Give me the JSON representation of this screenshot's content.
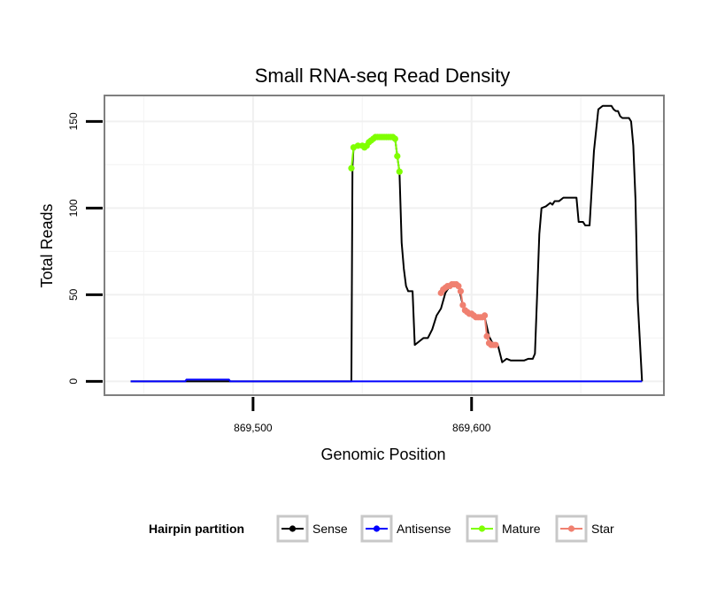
{
  "chart_data": {
    "type": "line",
    "title": "Small RNA-seq Read Density",
    "xlabel": "Genomic Position",
    "ylabel": "Total Reads",
    "xlim": [
      869432,
      869688
    ],
    "ylim": [
      -8,
      165
    ],
    "x_ticks": [
      {
        "value": 869500,
        "label": "869,500"
      },
      {
        "value": 869600,
        "label": "869,600"
      }
    ],
    "y_ticks": [
      {
        "value": 0,
        "label": "0"
      },
      {
        "value": 50,
        "label": "50"
      },
      {
        "value": 100,
        "label": "100"
      },
      {
        "value": 150,
        "label": "150"
      }
    ],
    "grid": true,
    "legend": {
      "title": "Hairpin partition",
      "position": "bottom",
      "entries": [
        {
          "name": "Sense",
          "color": "#000000"
        },
        {
          "name": "Antisense",
          "color": "#0000ff"
        },
        {
          "name": "Mature",
          "color": "#7fff00"
        },
        {
          "name": "Star",
          "color": "#f08070"
        }
      ]
    },
    "series": [
      {
        "name": "Sense",
        "color": "#000000",
        "markers": false,
        "x": [
          869444,
          869545,
          869545.5,
          869546,
          869548,
          869550,
          869551,
          869552,
          869553,
          869554,
          869555,
          869556,
          869557,
          869558,
          869559,
          869560,
          869561,
          869562,
          869563,
          869564,
          869565,
          869566,
          869567,
          869568,
          869569,
          869570,
          869571,
          869573,
          869574,
          869576,
          869578,
          869580,
          869582,
          869584,
          869586,
          869588,
          869590,
          869592,
          869594,
          869596,
          869598,
          869600,
          869602,
          869604,
          869606,
          869608,
          869610,
          869612,
          869614,
          869616,
          869618,
          869620,
          869622,
          869624,
          869626,
          869628,
          869629,
          869630,
          869631,
          869632,
          869634,
          869636,
          869637,
          869638,
          869640,
          869642,
          869644,
          869646,
          869647,
          869648,
          869649,
          869650,
          869651,
          869652,
          869654,
          869656,
          869658,
          869660,
          869662,
          869664,
          869665,
          869666,
          869667,
          869668,
          869669,
          869670,
          869671,
          869672,
          869673,
          869674,
          869675,
          869676,
          869678
        ],
        "y": [
          0,
          0,
          124,
          135,
          136,
          136,
          135,
          136,
          138,
          139,
          140,
          141,
          141,
          141,
          141,
          141,
          141,
          141,
          141,
          141,
          140,
          130,
          121,
          80,
          65,
          55,
          52,
          52,
          21,
          23,
          25,
          25,
          30,
          38,
          42,
          51,
          55,
          56,
          55,
          44,
          39,
          38,
          37,
          37,
          37,
          26,
          21,
          21,
          11,
          13,
          12,
          12,
          12,
          12,
          13,
          13,
          16,
          50,
          85,
          100,
          101,
          103,
          102,
          104,
          104,
          106,
          106,
          106,
          106,
          106,
          92,
          92,
          92,
          90,
          90,
          133,
          157,
          159,
          159,
          159,
          157,
          156,
          156,
          153,
          152,
          152,
          152,
          152,
          150,
          136,
          105,
          47,
          0
        ]
      },
      {
        "name": "Antisense",
        "color": "#0000ff",
        "markers": false,
        "x": [
          869444,
          869469,
          869469.5,
          869489,
          869489.5,
          869678
        ],
        "y": [
          0,
          0,
          1,
          1,
          0,
          0
        ]
      },
      {
        "name": "Mature",
        "color": "#7fff00",
        "markers": true,
        "x": [
          869545,
          869546,
          869548,
          869550,
          869551,
          869552,
          869553,
          869554,
          869555,
          869556,
          869557,
          869558,
          869559,
          869560,
          869561,
          869562,
          869563,
          869564,
          869565,
          869566,
          869567
        ],
        "y": [
          123,
          135,
          136,
          136,
          135,
          136,
          138,
          139,
          140,
          141,
          141,
          141,
          141,
          141,
          141,
          141,
          141,
          141,
          140,
          130,
          121
        ]
      },
      {
        "name": "Star",
        "color": "#f08070",
        "markers": true,
        "x": [
          869586,
          869587,
          869588,
          869589,
          869590,
          869591,
          869592,
          869593,
          869594,
          869595,
          869596,
          869597,
          869598,
          869599,
          869600,
          869601,
          869602,
          869603,
          869604,
          869605,
          869606,
          869607,
          869608,
          869609,
          869610,
          869611
        ],
        "y": [
          51,
          53,
          54,
          55,
          55,
          56,
          56,
          56,
          55,
          52,
          44,
          41,
          40,
          39,
          39,
          38,
          37,
          37,
          37,
          37,
          38,
          26,
          22,
          21,
          21,
          21
        ]
      }
    ]
  }
}
